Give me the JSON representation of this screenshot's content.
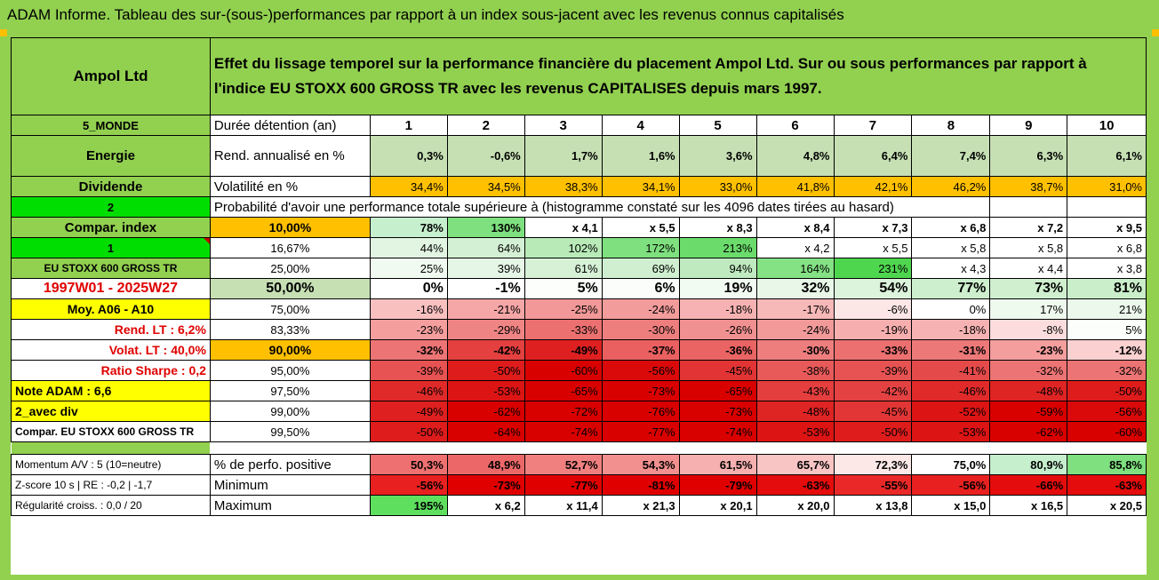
{
  "title": "ADAM Informe. Tableau des sur-(sous-)performances par rapport à un index sous-jacent avec les revenus connus capitalisés",
  "header": {
    "company": "Ampol Ltd",
    "description": "Effet du lissage temporel sur la performance financière du placement Ampol Ltd. Sur ou sous performances par rapport à l'indice EU STOXX 600 GROSS TR avec les revenus CAPITALISES depuis mars 1997."
  },
  "left": {
    "region": "5_MONDE",
    "sector": "Energie",
    "dividend": "Dividende",
    "num2": "2",
    "compar_index": "Compar. index",
    "num1": "1",
    "index_name": "EU STOXX 600 GROSS TR",
    "period": "1997W01 - 2025W27",
    "moy": "Moy. A06 - A10",
    "rend_lt": "Rend. LT :    6,2%",
    "volat_lt": "Volat. LT :    40,0%",
    "sharpe": "Ratio Sharpe :    0,2",
    "note": "Note ADAM : 6,6",
    "avec_div": "2_avec div",
    "compar_full": "Compar. EU STOXX 600 GROSS TR",
    "momentum": "Momentum A/V : 5 (10=neutre)",
    "zscore": "Z-score 10 s | RE : -0,2 | -1,7",
    "regularite": "Régularité croiss. : 0,0 / 20"
  },
  "rows_meta": {
    "duree_label": "Durée détention (an)",
    "years": [
      "1",
      "2",
      "3",
      "4",
      "5",
      "6",
      "7",
      "8",
      "9",
      "10"
    ],
    "rend_label": "Rend. annualisé en %",
    "rend": [
      "0,3%",
      "-0,6%",
      "1,7%",
      "1,6%",
      "3,6%",
      "4,8%",
      "6,4%",
      "7,4%",
      "6,3%",
      "6,1%"
    ],
    "vol_label": "Volatilité en %",
    "vol": [
      "34,4%",
      "34,5%",
      "38,3%",
      "34,1%",
      "33,0%",
      "41,8%",
      "42,1%",
      "46,2%",
      "38,7%",
      "31,0%"
    ],
    "proba_label": "Probabilité d'avoir une performance totale supérieure à (histogramme constaté sur les 4096 dates tirées au hasard)"
  },
  "quantiles": [
    {
      "pct": "10,00%",
      "vals": [
        "78%",
        "130%",
        "x 4,1",
        "x 5,5",
        "x 8,3",
        "x 8,4",
        "x 7,3",
        "x 6,8",
        "x 7,2",
        "x 9,5"
      ],
      "colors": [
        "#c6efce",
        "#7ee07e",
        "#ffffff",
        "#ffffff",
        "#ffffff",
        "#ffffff",
        "#ffffff",
        "#ffffff",
        "#ffffff",
        "#ffffff"
      ]
    },
    {
      "pct": "16,67%",
      "vals": [
        "44%",
        "64%",
        "102%",
        "172%",
        "213%",
        "x 4,2",
        "x 5,5",
        "x 5,8",
        "x 5,8",
        "x 6,8"
      ],
      "colors": [
        "#e2f5e2",
        "#d4f0d4",
        "#b8eab8",
        "#7ee07e",
        "#6bdc6b",
        "#ffffff",
        "#ffffff",
        "#ffffff",
        "#ffffff",
        "#ffffff"
      ]
    },
    {
      "pct": "25,00%",
      "vals": [
        "25%",
        "39%",
        "61%",
        "69%",
        "94%",
        "164%",
        "231%",
        "x 4,3",
        "x 4,4",
        "x 3,8"
      ],
      "colors": [
        "#f0faf0",
        "#e6f6e6",
        "#d6f1d6",
        "#d0efd0",
        "#bfeabf",
        "#84e184",
        "#4fd64f",
        "#ffffff",
        "#ffffff",
        "#ffffff"
      ]
    },
    {
      "pct": "50,00%",
      "vals": [
        "0%",
        "-1%",
        "5%",
        "6%",
        "19%",
        "32%",
        "54%",
        "77%",
        "73%",
        "81%"
      ],
      "colors": [
        "#ffffff",
        "#ffffff",
        "#fbfefb",
        "#fafdfa",
        "#f2fbf2",
        "#e9f7e9",
        "#dcf3dc",
        "#cdefcd",
        "#cfefcf",
        "#caeeca"
      ]
    },
    {
      "pct": "75,00%",
      "vals": [
        "-16%",
        "-21%",
        "-25%",
        "-24%",
        "-18%",
        "-17%",
        "-6%",
        "0%",
        "17%",
        "21%"
      ],
      "colors": [
        "#f9c0c0",
        "#f5a6a6",
        "#f29898",
        "#f29c9c",
        "#f6b2b2",
        "#f7b8b8",
        "#fde6e6",
        "#ffffff",
        "#effaef",
        "#ebf8eb"
      ]
    },
    {
      "pct": "83,33%",
      "vals": [
        "-23%",
        "-29%",
        "-33%",
        "-30%",
        "-26%",
        "-24%",
        "-19%",
        "-18%",
        "-8%",
        "5%"
      ],
      "colors": [
        "#f49e9e",
        "#ef8484",
        "#ec7070",
        "#ee7e7e",
        "#f19090",
        "#f29a9a",
        "#f6aeae",
        "#f6b2b2",
        "#fcdcdc",
        "#fbfefb"
      ]
    },
    {
      "pct": "90,00%",
      "vals": [
        "-32%",
        "-42%",
        "-49%",
        "-37%",
        "-36%",
        "-30%",
        "-33%",
        "-31%",
        "-23%",
        "-12%"
      ],
      "colors": [
        "#ec7474",
        "#e44040",
        "#df2020",
        "#ea6060",
        "#ea6464",
        "#ee7e7e",
        "#ec7070",
        "#ed7878",
        "#f49e9e",
        "#fad0d0"
      ]
    },
    {
      "pct": "95,00%",
      "vals": [
        "-39%",
        "-50%",
        "-60%",
        "-56%",
        "-45%",
        "-38%",
        "-39%",
        "-41%",
        "-32%",
        "-32%"
      ],
      "colors": [
        "#e75252",
        "#de1c1c",
        "#d90000",
        "#da0a0a",
        "#e23434",
        "#e85a5a",
        "#e75252",
        "#e54a4a",
        "#ec7474",
        "#ec7474"
      ]
    },
    {
      "pct": "97,50%",
      "vals": [
        "-46%",
        "-53%",
        "-65%",
        "-73%",
        "-65%",
        "-43%",
        "-42%",
        "-46%",
        "-48%",
        "-50%"
      ],
      "colors": [
        "#e02a2a",
        "#dc1414",
        "#d90000",
        "#d90000",
        "#d90000",
        "#e43e3e",
        "#e44242",
        "#e02a2a",
        "#df2424",
        "#de1c1c"
      ]
    },
    {
      "pct": "99,00%",
      "vals": [
        "-49%",
        "-62%",
        "-72%",
        "-76%",
        "-73%",
        "-48%",
        "-45%",
        "-52%",
        "-59%",
        "-56%"
      ],
      "colors": [
        "#df2020",
        "#d90000",
        "#d90000",
        "#d90000",
        "#d90000",
        "#df2424",
        "#e23636",
        "#dc1414",
        "#d90000",
        "#da0a0a"
      ]
    },
    {
      "pct": "99,50%",
      "vals": [
        "-50%",
        "-64%",
        "-74%",
        "-77%",
        "-74%",
        "-53%",
        "-50%",
        "-53%",
        "-62%",
        "-60%"
      ],
      "colors": [
        "#de1c1c",
        "#d90000",
        "#d90000",
        "#d90000",
        "#d90000",
        "#dc1414",
        "#de1c1c",
        "#dc1414",
        "#d90000",
        "#d90000"
      ]
    }
  ],
  "bottom": {
    "pos_label": "% de perfo. positive",
    "pos": [
      "50,3%",
      "48,9%",
      "52,7%",
      "54,3%",
      "61,5%",
      "65,7%",
      "72,3%",
      "75,0%",
      "80,9%",
      "85,8%"
    ],
    "pos_colors": [
      "#ee7070",
      "#ec6868",
      "#f08080",
      "#f29090",
      "#f6b0b0",
      "#f8c4c4",
      "#fde8e8",
      "#ffffff",
      "#c6efce",
      "#7ee07e"
    ],
    "min_label": "Minimum",
    "min": [
      "-56%",
      "-73%",
      "-77%",
      "-81%",
      "-79%",
      "-63%",
      "-55%",
      "-56%",
      "-66%",
      "-63%"
    ],
    "min_colors": [
      "#e82020",
      "#e00000",
      "#e00000",
      "#e00000",
      "#e00000",
      "#e40c0c",
      "#ea2828",
      "#e82020",
      "#e40c0c",
      "#e40c0c"
    ],
    "max_label": "Maximum",
    "max": [
      "195%",
      "x 6,2",
      "x 11,4",
      "x 21,3",
      "x 20,1",
      "x 20,0",
      "x 13,8",
      "x 15,0",
      "x 16,5",
      "x 20,5"
    ],
    "max_colors": [
      "#5ee05e",
      "#ffffff",
      "#ffffff",
      "#ffffff",
      "#ffffff",
      "#ffffff",
      "#ffffff",
      "#ffffff",
      "#ffffff",
      "#ffffff"
    ]
  },
  "colors": {
    "green_header": "#92d050",
    "orange": "#ffc000",
    "yellow": "#ffff00",
    "bright_green": "#00dd00",
    "red_text": "#e00000"
  }
}
